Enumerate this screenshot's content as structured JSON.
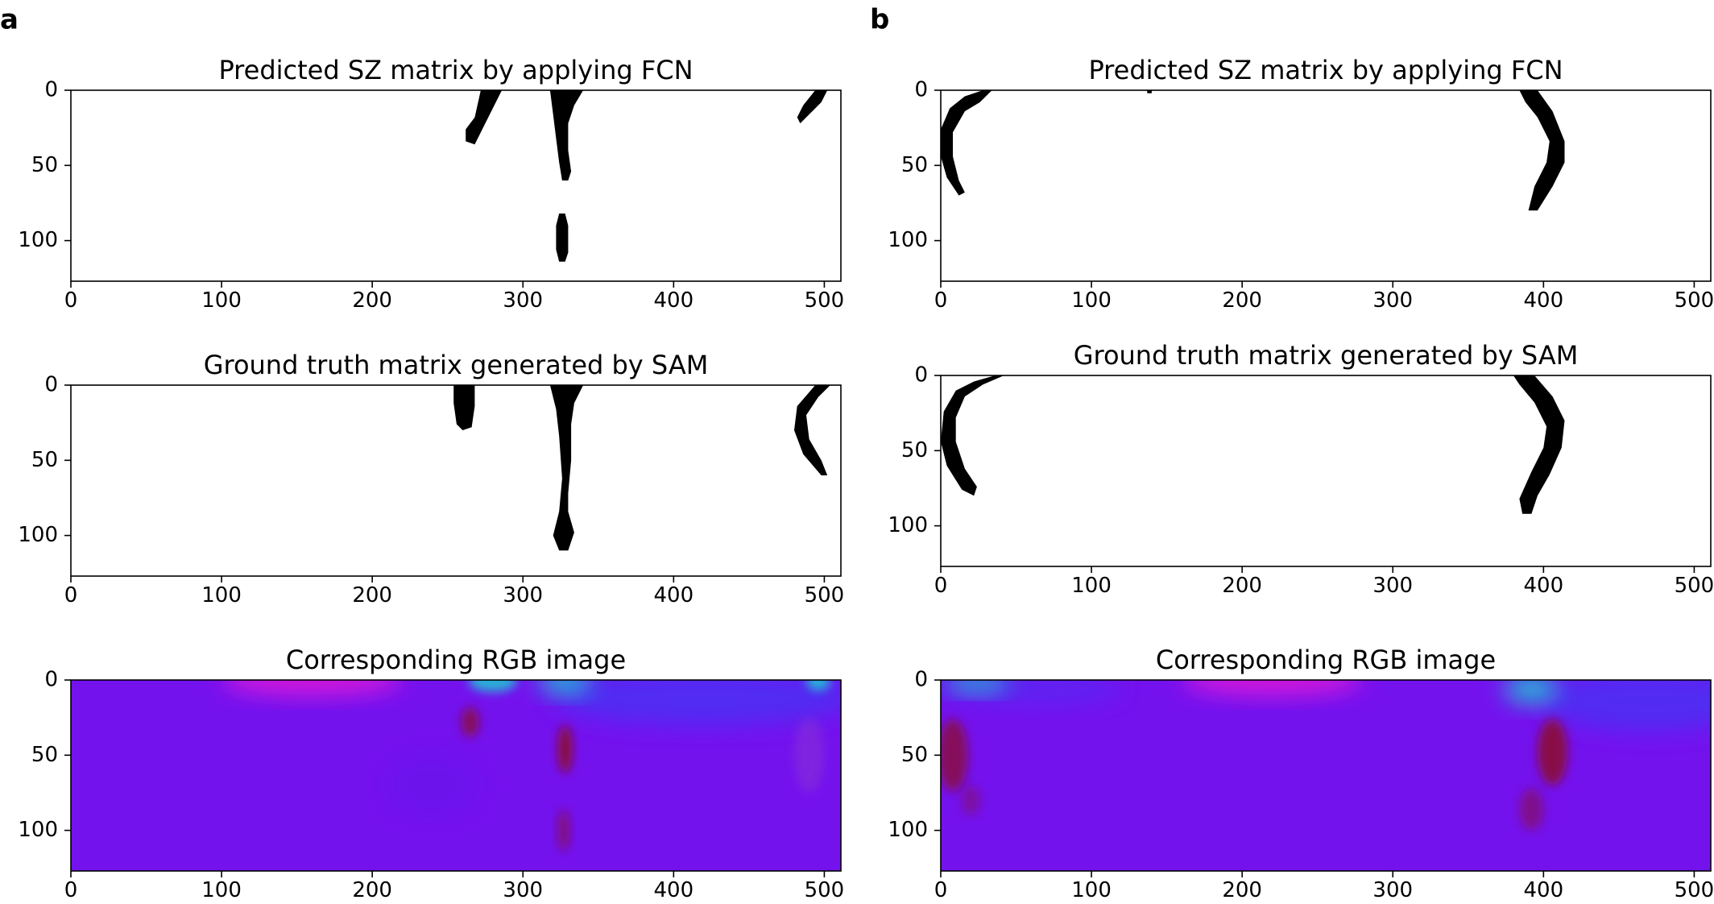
{
  "panels": [
    {
      "label": "a",
      "charts": [
        {
          "type": "heatmap",
          "kind": "mask",
          "title": "Predicted SZ matrix by applying FCN",
          "xlim": [
            0,
            511
          ],
          "ylim": [
            127,
            0
          ],
          "xticks": [
            0,
            100,
            200,
            300,
            400,
            500
          ],
          "yticks": [
            0,
            50,
            100
          ],
          "regions": [
            {
              "name": "blob-left",
              "path": [
                [
                  272,
                  0
                ],
                [
                  286,
                  0
                ],
                [
                  278,
                  16
                ],
                [
                  272,
                  28
                ],
                [
                  268,
                  36
                ],
                [
                  262,
                  34
                ],
                [
                  262,
                  26
                ],
                [
                  268,
                  18
                ]
              ]
            },
            {
              "name": "blob-center",
              "path": [
                [
                  318,
                  0
                ],
                [
                  340,
                  0
                ],
                [
                  334,
                  10
                ],
                [
                  330,
                  22
                ],
                [
                  330,
                  40
                ],
                [
                  332,
                  54
                ],
                [
                  330,
                  60
                ],
                [
                  326,
                  60
                ],
                [
                  324,
                  48
                ],
                [
                  322,
                  32
                ],
                [
                  320,
                  16
                ]
              ]
            },
            {
              "name": "blob-center-lower",
              "path": [
                [
                  324,
                  82
                ],
                [
                  328,
                  82
                ],
                [
                  330,
                  90
                ],
                [
                  330,
                  108
                ],
                [
                  328,
                  114
                ],
                [
                  324,
                  114
                ],
                [
                  322,
                  106
                ],
                [
                  322,
                  90
                ]
              ]
            },
            {
              "name": "blob-right",
              "path": [
                [
                  494,
                  0
                ],
                [
                  502,
                  0
                ],
                [
                  498,
                  8
                ],
                [
                  490,
                  16
                ],
                [
                  484,
                  22
                ],
                [
                  482,
                  18
                ],
                [
                  486,
                  10
                ]
              ]
            }
          ]
        },
        {
          "type": "heatmap",
          "kind": "mask",
          "title": "Ground truth matrix generated by SAM",
          "xlim": [
            0,
            511
          ],
          "ylim": [
            127,
            0
          ],
          "xticks": [
            0,
            100,
            200,
            300,
            400,
            500
          ],
          "yticks": [
            0,
            50,
            100
          ],
          "regions": [
            {
              "name": "blob-left",
              "path": [
                [
                  254,
                  0
                ],
                [
                  268,
                  0
                ],
                [
                  268,
                  14
                ],
                [
                  266,
                  28
                ],
                [
                  260,
                  30
                ],
                [
                  256,
                  26
                ],
                [
                  254,
                  12
                ]
              ]
            },
            {
              "name": "blob-center",
              "path": [
                [
                  318,
                  0
                ],
                [
                  340,
                  0
                ],
                [
                  334,
                  12
                ],
                [
                  332,
                  26
                ],
                [
                  332,
                  50
                ],
                [
                  330,
                  72
                ],
                [
                  330,
                  84
                ],
                [
                  334,
                  98
                ],
                [
                  330,
                  110
                ],
                [
                  324,
                  110
                ],
                [
                  320,
                  100
                ],
                [
                  324,
                  84
                ],
                [
                  326,
                  62
                ],
                [
                  324,
                  34
                ],
                [
                  322,
                  16
                ]
              ]
            },
            {
              "name": "blob-right",
              "path": [
                [
                  494,
                  0
                ],
                [
                  504,
                  0
                ],
                [
                  496,
                  8
                ],
                [
                  488,
                  20
                ],
                [
                  490,
                  36
                ],
                [
                  498,
                  50
                ],
                [
                  502,
                  60
                ],
                [
                  498,
                  60
                ],
                [
                  486,
                  46
                ],
                [
                  480,
                  30
                ],
                [
                  482,
                  14
                ]
              ]
            }
          ]
        },
        {
          "type": "heatmap",
          "kind": "rgb",
          "title": "Corresponding RGB image",
          "xlim": [
            0,
            511
          ],
          "ylim": [
            127,
            0
          ],
          "xticks": [
            0,
            100,
            200,
            300,
            400,
            500
          ],
          "yticks": [
            0,
            50,
            100
          ],
          "background": "#7412ee",
          "highlights": [
            {
              "color": "#ff1ed2",
              "cx": 160,
              "cy": 0,
              "rx": 60,
              "ry": 10,
              "opacity": 0.7
            },
            {
              "color": "#3a3cf5",
              "cx": 420,
              "cy": 12,
              "rx": 100,
              "ry": 18,
              "opacity": 0.6
            },
            {
              "color": "#18d6d0",
              "cx": 280,
              "cy": 1,
              "rx": 16,
              "ry": 7,
              "opacity": 0.8
            },
            {
              "color": "#18d6d0",
              "cx": 328,
              "cy": 1,
              "rx": 18,
              "ry": 8,
              "opacity": 0.85
            },
            {
              "color": "#18d6d0",
              "cx": 496,
              "cy": 1,
              "rx": 8,
              "ry": 6,
              "opacity": 0.8
            },
            {
              "color": "#8c0f2a",
              "cx": 265,
              "cy": 28,
              "rx": 6,
              "ry": 10,
              "opacity": 0.75
            },
            {
              "color": "#8c0f2a",
              "cx": 328,
              "cy": 46,
              "rx": 5,
              "ry": 16,
              "opacity": 0.9
            },
            {
              "color": "#8c0f2a",
              "cx": 327,
              "cy": 100,
              "rx": 4,
              "ry": 14,
              "opacity": 0.6
            },
            {
              "color": "#9a4dc0",
              "cx": 490,
              "cy": 50,
              "rx": 10,
              "ry": 25,
              "opacity": 0.3
            },
            {
              "color": "#5a18e8",
              "cx": 240,
              "cy": 70,
              "rx": 30,
              "ry": 20,
              "opacity": 0.3
            }
          ]
        }
      ]
    },
    {
      "label": "b",
      "charts": [
        {
          "type": "heatmap",
          "kind": "mask",
          "title": "Predicted SZ matrix by applying FCN",
          "xlim": [
            0,
            511
          ],
          "ylim": [
            127,
            0
          ],
          "xticks": [
            0,
            100,
            200,
            300,
            400,
            500
          ],
          "yticks": [
            0,
            50,
            100
          ],
          "regions": [
            {
              "name": "arc-left",
              "path": [
                [
                  28,
                  0
                ],
                [
                  34,
                  0
                ],
                [
                  26,
                  8
                ],
                [
                  16,
                  14
                ],
                [
                  8,
                  28
                ],
                [
                  8,
                  44
                ],
                [
                  12,
                  60
                ],
                [
                  16,
                  68
                ],
                [
                  12,
                  70
                ],
                [
                  4,
                  58
                ],
                [
                  0,
                  44
                ],
                [
                  0,
                  26
                ],
                [
                  6,
                  12
                ],
                [
                  16,
                  4
                ]
              ]
            },
            {
              "name": "arc-right",
              "path": [
                [
                  384,
                  0
                ],
                [
                  396,
                  0
                ],
                [
                  406,
                  14
                ],
                [
                  414,
                  34
                ],
                [
                  414,
                  48
                ],
                [
                  406,
                  64
                ],
                [
                  396,
                  80
                ],
                [
                  390,
                  80
                ],
                [
                  394,
                  64
                ],
                [
                  402,
                  48
                ],
                [
                  404,
                  34
                ],
                [
                  396,
                  18
                ],
                [
                  388,
                  8
                ]
              ]
            },
            {
              "name": "dot",
              "path": [
                [
                  137,
                  0
                ],
                [
                  140,
                  0
                ],
                [
                  140,
                  2
                ],
                [
                  137,
                  2
                ]
              ]
            }
          ]
        },
        {
          "type": "heatmap",
          "kind": "mask",
          "title": "Ground truth matrix generated by SAM",
          "xlim": [
            0,
            511
          ],
          "ylim": [
            127,
            0
          ],
          "xticks": [
            0,
            100,
            200,
            300,
            400,
            500
          ],
          "yticks": [
            0,
            50,
            100
          ],
          "regions": [
            {
              "name": "arc-left",
              "path": [
                [
                  36,
                  0
                ],
                [
                  42,
                  0
                ],
                [
                  28,
                  6
                ],
                [
                  16,
                  14
                ],
                [
                  10,
                  28
                ],
                [
                  10,
                  44
                ],
                [
                  16,
                  62
                ],
                [
                  24,
                  74
                ],
                [
                  22,
                  80
                ],
                [
                  14,
                  76
                ],
                [
                  4,
                  60
                ],
                [
                  0,
                  44
                ],
                [
                  2,
                  24
                ],
                [
                  10,
                  10
                ],
                [
                  22,
                  4
                ]
              ]
            },
            {
              "name": "arc-right",
              "path": [
                [
                  380,
                  0
                ],
                [
                  394,
                  0
                ],
                [
                  406,
                  14
                ],
                [
                  414,
                  30
                ],
                [
                  412,
                  48
                ],
                [
                  404,
                  66
                ],
                [
                  396,
                  80
                ],
                [
                  392,
                  92
                ],
                [
                  386,
                  92
                ],
                [
                  384,
                  82
                ],
                [
                  392,
                  64
                ],
                [
                  400,
                  48
                ],
                [
                  402,
                  34
                ],
                [
                  394,
                  18
                ],
                [
                  384,
                  6
                ]
              ]
            }
          ]
        },
        {
          "type": "heatmap",
          "kind": "rgb",
          "title": "Corresponding RGB image",
          "xlim": [
            0,
            511
          ],
          "ylim": [
            127,
            0
          ],
          "xticks": [
            0,
            100,
            200,
            300,
            400,
            500
          ],
          "yticks": [
            0,
            50,
            100
          ],
          "background": "#7412ee",
          "highlights": [
            {
              "color": "#ff1ed2",
              "cx": 220,
              "cy": 0,
              "rx": 60,
              "ry": 10,
              "opacity": 0.7
            },
            {
              "color": "#3a3cf5",
              "cx": 470,
              "cy": 14,
              "rx": 70,
              "ry": 20,
              "opacity": 0.6
            },
            {
              "color": "#3a3cf5",
              "cx": 60,
              "cy": 6,
              "rx": 60,
              "ry": 10,
              "opacity": 0.4
            },
            {
              "color": "#18d6d0",
              "cx": 24,
              "cy": 2,
              "rx": 22,
              "ry": 6,
              "opacity": 0.8
            },
            {
              "color": "#18d6d0",
              "cx": 392,
              "cy": 6,
              "rx": 18,
              "ry": 10,
              "opacity": 0.8
            },
            {
              "color": "#8c0f2a",
              "cx": 8,
              "cy": 50,
              "rx": 10,
              "ry": 24,
              "opacity": 0.75
            },
            {
              "color": "#8c0f2a",
              "cx": 406,
              "cy": 48,
              "rx": 10,
              "ry": 22,
              "opacity": 0.85
            },
            {
              "color": "#8c0f2a",
              "cx": 392,
              "cy": 86,
              "rx": 8,
              "ry": 14,
              "opacity": 0.5
            },
            {
              "color": "#8c0f2a",
              "cx": 20,
              "cy": 80,
              "rx": 6,
              "ry": 10,
              "opacity": 0.4
            }
          ]
        }
      ]
    }
  ]
}
